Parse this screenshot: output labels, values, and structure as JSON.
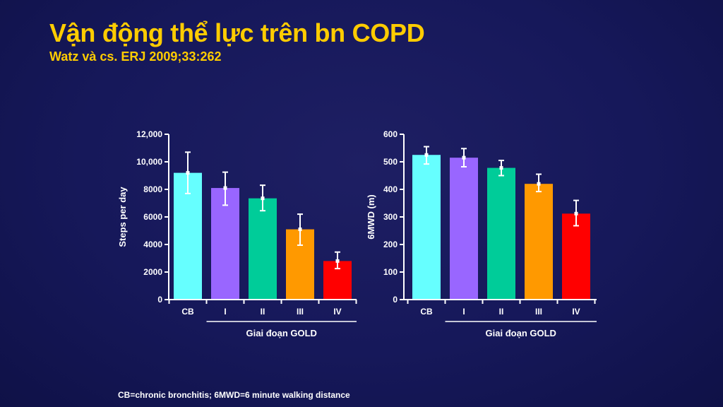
{
  "slide": {
    "title": "Vận động thể lực trên bn COPD",
    "subtitle": "Watz và cs. ERJ 2009;33:262",
    "footnote": "CB=chronic bronchitis; 6MWD=6 minute walking distance"
  },
  "chart_data": [
    {
      "type": "bar",
      "ylabel": "Steps per day",
      "xlabel": "Giai đoạn GOLD",
      "categories": [
        "CB",
        "I",
        "II",
        "III",
        "IV"
      ],
      "values": [
        9200,
        8100,
        7350,
        5100,
        2800
      ],
      "error_high": [
        10700,
        9250,
        8300,
        6200,
        3450
      ],
      "error_low": [
        7700,
        6850,
        6450,
        3950,
        2250
      ],
      "colors": [
        "#66ffff",
        "#9966ff",
        "#00cc99",
        "#ff9900",
        "#ff0000"
      ],
      "ylim": [
        0,
        12000
      ],
      "yticks": [
        0,
        2000,
        4000,
        6000,
        8000,
        10000,
        12000
      ],
      "ytick_labels": [
        "0",
        "2000",
        "4000",
        "6000",
        "8000",
        "10,000",
        "12,000"
      ],
      "grid": false,
      "gold_bracket_from": "I"
    },
    {
      "type": "bar",
      "ylabel": "6MWD (m)",
      "xlabel": "Giai đoạn GOLD",
      "categories": [
        "CB",
        "I",
        "II",
        "III",
        "IV"
      ],
      "values": [
        525,
        515,
        478,
        420,
        312
      ],
      "error_high": [
        555,
        548,
        505,
        455,
        360
      ],
      "error_low": [
        492,
        482,
        450,
        392,
        268
      ],
      "colors": [
        "#66ffff",
        "#9966ff",
        "#00cc99",
        "#ff9900",
        "#ff0000"
      ],
      "ylim": [
        0,
        600
      ],
      "yticks": [
        0,
        100,
        200,
        300,
        400,
        500,
        600
      ],
      "ytick_labels": [
        "0",
        "100",
        "200",
        "300",
        "400",
        "500",
        "600"
      ],
      "grid": false,
      "gold_bracket_from": "I"
    }
  ]
}
